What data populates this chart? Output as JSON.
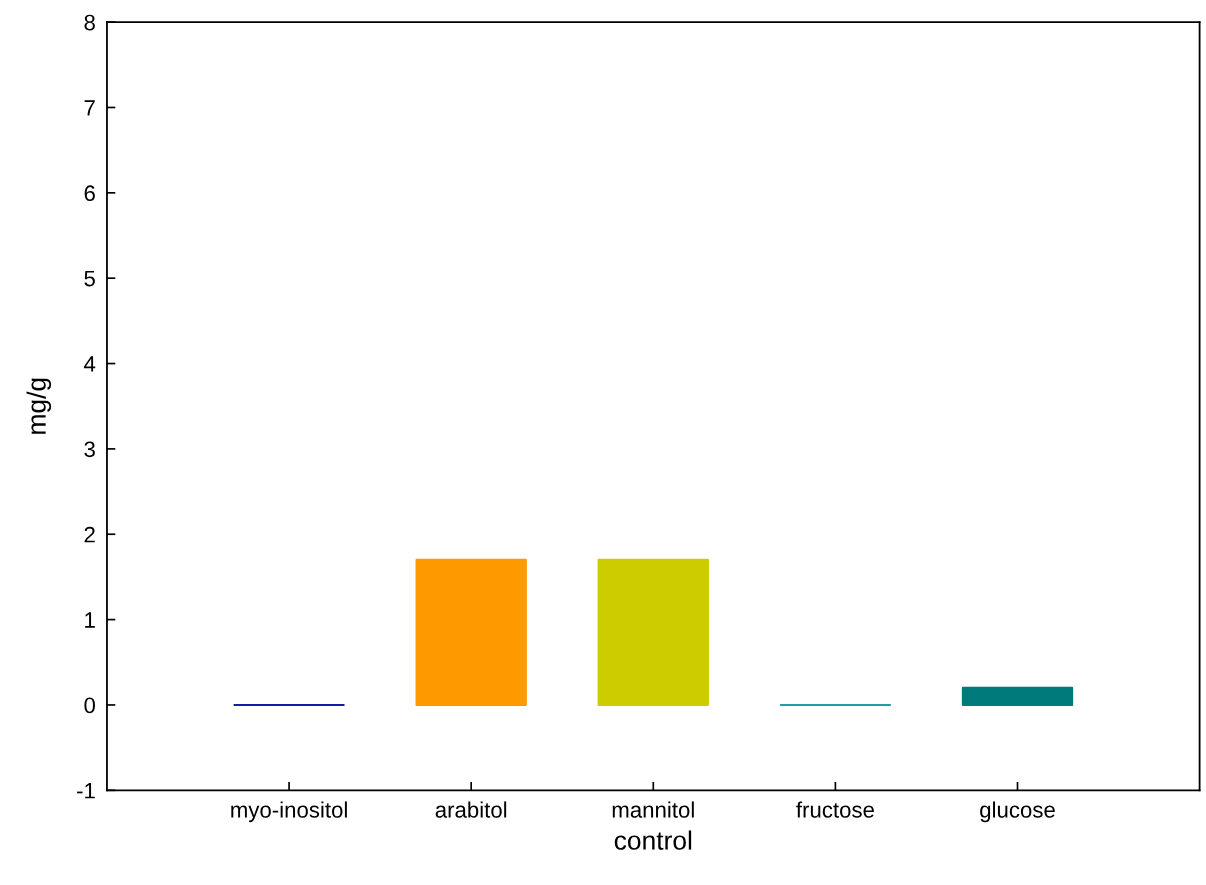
{
  "chart_data": {
    "type": "bar",
    "xlabel": "control",
    "ylabel": "mg/g",
    "categories": [
      "myo-inositol",
      "arabitol",
      "mannitol",
      "fructose",
      "glucose"
    ],
    "values": [
      0,
      1.7,
      1.7,
      0,
      0.2
    ],
    "colors": [
      "#1a1aa0",
      "#ff9900",
      "#cccc00",
      "#20a0a0",
      "#007a7a"
    ],
    "ylim": [
      -1,
      8
    ],
    "yticks": [
      -1,
      0,
      1,
      2,
      3,
      4,
      5,
      6,
      7,
      8
    ],
    "grid": false,
    "legend": false
  }
}
